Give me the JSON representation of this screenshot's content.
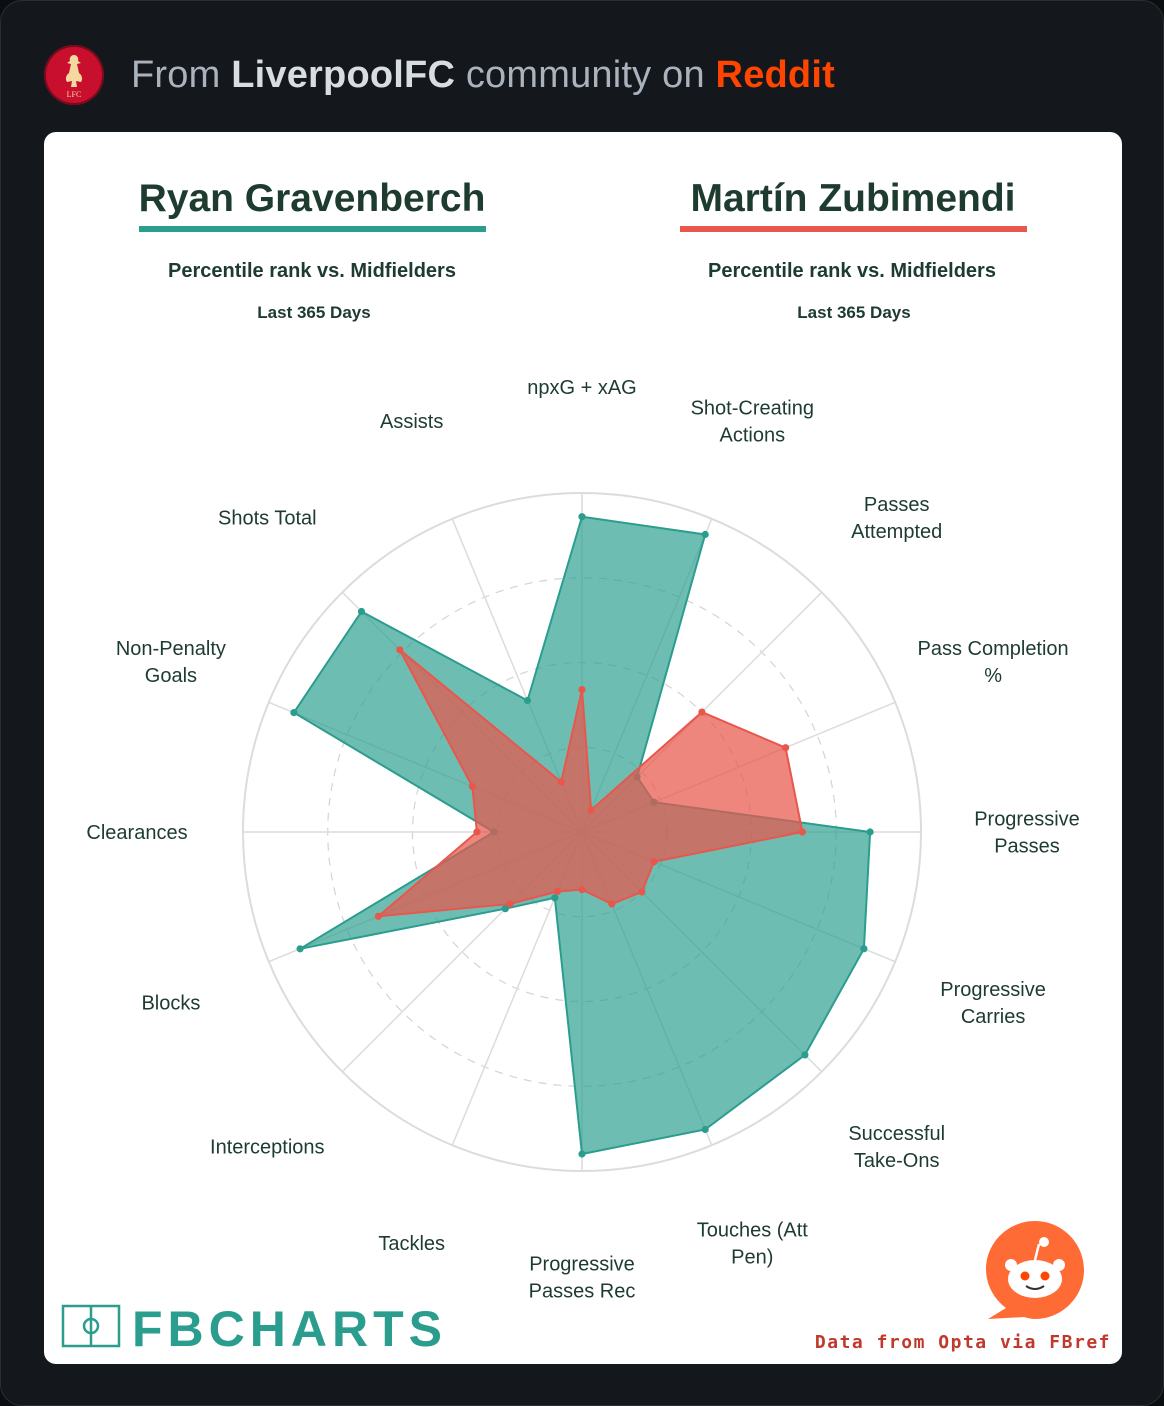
{
  "header": {
    "prefix": "From ",
    "community": "LiverpoolFC",
    "middle": " community on ",
    "platform": "Reddit",
    "badge_icon": "liverpool-crest-icon",
    "badge_text": "LFC"
  },
  "chart_data": {
    "type": "radar",
    "players": [
      {
        "name": "Ryan Gravenberch",
        "subtitle": "Percentile rank vs. Midfielders",
        "period": "Last 365 Days",
        "color": "#2a9d8f"
      },
      {
        "name": "Martín Zubimendi",
        "subtitle": "Percentile rank vs. Midfielders",
        "period": "Last 365 Days",
        "color": "#e8574c"
      }
    ],
    "axes": [
      "npxG + xAG",
      "Shot-Creating Actions",
      "Passes Attempted",
      "Pass Completion %",
      "Progressive Passes",
      "Progressive Carries",
      "Successful Take-Ons",
      "Touches (Att Pen)",
      "Progressive Passes Rec",
      "Tackles",
      "Interceptions",
      "Blocks",
      "Clearances",
      "Non-Penalty Goals",
      "Shots Total",
      "Assists"
    ],
    "series": [
      {
        "name": "Ryan Gravenberch",
        "values": [
          93,
          95,
          23,
          23,
          85,
          90,
          93,
          95,
          95,
          21,
          32,
          90,
          26,
          92,
          92,
          42
        ]
      },
      {
        "name": "Martín Zubimendi",
        "values": [
          42,
          7,
          50,
          65,
          65,
          23,
          25,
          23,
          17,
          19,
          30,
          65,
          31,
          35,
          76,
          16
        ]
      }
    ],
    "rlim": [
      0,
      100
    ],
    "grid": true,
    "credit": "Data from Opta via FBref",
    "brand": "FBCHARTS"
  }
}
